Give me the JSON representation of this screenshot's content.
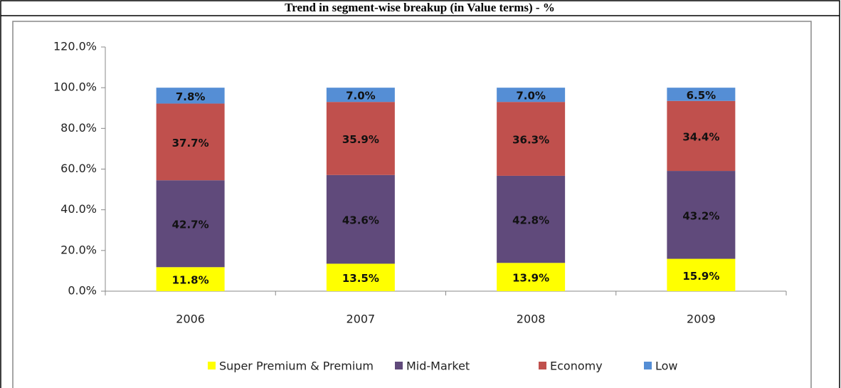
{
  "chart_data": {
    "type": "stacked_bar",
    "title": "Trend in segment-wise breakup (in Value terms) - %",
    "categories": [
      "2006",
      "2007",
      "2008",
      "2009"
    ],
    "series": [
      {
        "name": "Super Premium & Premium",
        "color": "#ffff00",
        "values": [
          11.8,
          13.5,
          13.9,
          15.9
        ],
        "value_labels": [
          "11.8%",
          "13.5%",
          "13.9%",
          "15.9%"
        ]
      },
      {
        "name": "Mid-Market",
        "color": "#604a7b",
        "values": [
          42.7,
          43.6,
          42.8,
          43.2
        ],
        "value_labels": [
          "42.7%",
          "43.6%",
          "42.8%",
          "43.2%"
        ]
      },
      {
        "name": "Economy",
        "color": "#c0504d",
        "values": [
          37.7,
          35.9,
          36.3,
          34.4
        ],
        "value_labels": [
          "37.7%",
          "35.9%",
          "36.3%",
          "34.4%"
        ]
      },
      {
        "name": "Low",
        "color": "#558ed5",
        "values": [
          7.8,
          7.0,
          7.0,
          6.5
        ],
        "value_labels": [
          "7.8%",
          "7.0%",
          "7.0%",
          "6.5%"
        ]
      }
    ],
    "ylim": [
      0,
      120
    ],
    "yticks": [
      {
        "value": 0,
        "label": "0.0%"
      },
      {
        "value": 20,
        "label": "20.0%"
      },
      {
        "value": 40,
        "label": "40.0%"
      },
      {
        "value": 60,
        "label": "60.0%"
      },
      {
        "value": 80,
        "label": "80.0%"
      },
      {
        "value": 100,
        "label": "100.0%"
      },
      {
        "value": 120,
        "label": "120.0%"
      }
    ],
    "legend": "bottom"
  }
}
